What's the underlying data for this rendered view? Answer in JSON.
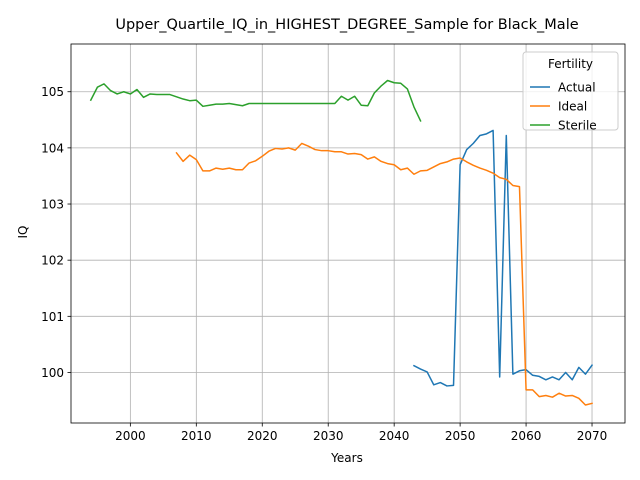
{
  "chart_data": {
    "type": "line",
    "title": "Upper_Quartile_IQ_in_HIGHEST_DEGREE_Sample for Black_Male",
    "xlabel": "Years",
    "ylabel": "IQ",
    "xlim": [
      1991,
      2075
    ],
    "ylim": [
      99.1,
      105.85
    ],
    "xticks": [
      2000,
      2010,
      2020,
      2030,
      2040,
      2050,
      2060,
      2070
    ],
    "yticks": [
      100,
      101,
      102,
      103,
      104,
      105
    ],
    "grid": true,
    "legend": {
      "title": "Fertility",
      "placement": "upper right"
    },
    "series": [
      {
        "name": "Actual",
        "color": "#1f77b4",
        "x": [
          2043,
          2044,
          2045,
          2046,
          2047,
          2048,
          2049,
          2050,
          2051,
          2052,
          2053,
          2054,
          2055,
          2056,
          2057,
          2058,
          2059,
          2060,
          2061,
          2062,
          2063,
          2064,
          2065,
          2066,
          2067,
          2068,
          2069,
          2070
        ],
        "y": [
          100.12,
          100.06,
          100.01,
          99.78,
          99.82,
          99.76,
          99.77,
          103.7,
          103.97,
          104.08,
          104.22,
          104.25,
          104.31,
          99.92,
          104.22,
          99.97,
          100.03,
          100.05,
          99.95,
          99.93,
          99.87,
          99.92,
          99.87,
          100.0,
          99.87,
          100.09,
          99.97,
          100.13
        ]
      },
      {
        "name": "Ideal",
        "color": "#ff7f0e",
        "x": [
          2007,
          2008,
          2009,
          2010,
          2011,
          2012,
          2013,
          2014,
          2015,
          2016,
          2017,
          2018,
          2019,
          2020,
          2021,
          2022,
          2023,
          2024,
          2025,
          2026,
          2027,
          2028,
          2029,
          2030,
          2031,
          2032,
          2033,
          2034,
          2035,
          2036,
          2037,
          2038,
          2039,
          2040,
          2041,
          2042,
          2043,
          2044,
          2045,
          2046,
          2047,
          2048,
          2049,
          2050,
          2051,
          2052,
          2053,
          2054,
          2055,
          2056,
          2057,
          2058,
          2059,
          2060,
          2061,
          2062,
          2063,
          2064,
          2065,
          2066,
          2067,
          2068,
          2069,
          2070
        ],
        "y": [
          103.91,
          103.76,
          103.87,
          103.79,
          103.59,
          103.59,
          103.64,
          103.62,
          103.64,
          103.61,
          103.61,
          103.73,
          103.77,
          103.85,
          103.94,
          103.99,
          103.98,
          104.0,
          103.96,
          104.08,
          104.03,
          103.97,
          103.95,
          103.95,
          103.93,
          103.93,
          103.89,
          103.9,
          103.88,
          103.8,
          103.84,
          103.76,
          103.72,
          103.7,
          103.61,
          103.64,
          103.53,
          103.59,
          103.6,
          103.66,
          103.72,
          103.75,
          103.8,
          103.82,
          103.75,
          103.69,
          103.64,
          103.6,
          103.55,
          103.47,
          103.44,
          103.33,
          103.31,
          99.69,
          99.69,
          99.57,
          99.59,
          99.56,
          99.63,
          99.58,
          99.59,
          99.54,
          99.42,
          99.45
        ]
      },
      {
        "name": "Sterile",
        "color": "#2ca02c",
        "x": [
          1994,
          1995,
          1996,
          1997,
          1998,
          1999,
          2000,
          2001,
          2002,
          2003,
          2004,
          2005,
          2006,
          2007,
          2008,
          2009,
          2010,
          2011,
          2012,
          2013,
          2014,
          2015,
          2016,
          2017,
          2018,
          2019,
          2020,
          2021,
          2022,
          2023,
          2024,
          2025,
          2026,
          2027,
          2028,
          2029,
          2030,
          2031,
          2032,
          2033,
          2034,
          2035,
          2036,
          2037,
          2038,
          2039,
          2040,
          2041,
          2042,
          2043,
          2044
        ],
        "y": [
          104.85,
          105.08,
          105.14,
          105.02,
          104.96,
          105.0,
          104.96,
          105.04,
          104.9,
          104.96,
          104.95,
          104.95,
          104.95,
          104.91,
          104.87,
          104.84,
          104.85,
          104.74,
          104.76,
          104.78,
          104.78,
          104.79,
          104.77,
          104.75,
          104.79,
          104.79,
          104.79,
          104.79,
          104.79,
          104.79,
          104.79,
          104.79,
          104.79,
          104.79,
          104.79,
          104.79,
          104.79,
          104.79,
          104.92,
          104.85,
          104.92,
          104.76,
          104.75,
          104.98,
          105.1,
          105.2,
          105.16,
          105.15,
          105.05,
          104.73,
          104.48
        ]
      }
    ]
  }
}
